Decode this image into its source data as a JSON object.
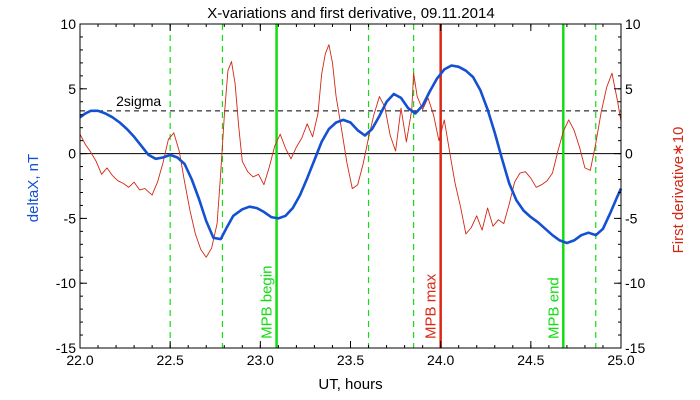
{
  "chart_data": {
    "type": "line",
    "title": "X-variations and first derivative, 09.11.2014",
    "xlabel": "UT, hours",
    "ylabel_left": "deltaX, nT",
    "ylabel_right": "First derivative∗10",
    "xlim": [
      22.0,
      25.0
    ],
    "ylim": [
      -15,
      10
    ],
    "x_ticks": [
      22.0,
      22.5,
      23.0,
      23.5,
      24.0,
      24.5,
      25.0
    ],
    "x_tick_labels": [
      "22.0",
      "22.5",
      "23.0",
      "23.5",
      "24.0",
      "24.5",
      "25.0"
    ],
    "y_ticks": [
      -15,
      -10,
      -5,
      0,
      5,
      10
    ],
    "y_tick_labels": [
      "-15",
      "-10",
      "-5",
      "0",
      "5",
      "10"
    ],
    "colors": {
      "deltaX": "#1450d2",
      "derivative": "#d22814",
      "mpb": "#14dc14",
      "max": "#dc2814",
      "axis": "#000000"
    },
    "sigma_level": 3.3,
    "sigma_label": "2sigma",
    "zero_line": 0,
    "dashed_vlines": [
      22.5,
      22.79,
      23.6,
      23.85,
      24.86
    ],
    "markers": [
      {
        "x": 23.09,
        "label": "MPB begin",
        "color": "#14dc14"
      },
      {
        "x": 24.0,
        "label": "MPB max",
        "color": "#dc2814"
      },
      {
        "x": 24.68,
        "label": "MPB end",
        "color": "#14dc14"
      }
    ],
    "series": [
      {
        "name": "deltaX, nT",
        "color": "#1450d2",
        "x": [
          22.0,
          22.03,
          22.06,
          22.1,
          22.14,
          22.18,
          22.22,
          22.26,
          22.3,
          22.34,
          22.38,
          22.42,
          22.46,
          22.5,
          22.54,
          22.58,
          22.62,
          22.66,
          22.7,
          22.74,
          22.78,
          22.81,
          22.85,
          22.9,
          22.94,
          22.98,
          23.02,
          23.06,
          23.1,
          23.14,
          23.18,
          23.22,
          23.26,
          23.3,
          23.34,
          23.38,
          23.42,
          23.46,
          23.5,
          23.54,
          23.58,
          23.62,
          23.66,
          23.7,
          23.74,
          23.78,
          23.82,
          23.86,
          23.9,
          23.94,
          23.98,
          24.02,
          24.06,
          24.1,
          24.14,
          24.18,
          24.22,
          24.26,
          24.3,
          24.34,
          24.38,
          24.42,
          24.46,
          24.5,
          24.54,
          24.58,
          24.62,
          24.66,
          24.7,
          24.74,
          24.78,
          24.82,
          24.86,
          24.9,
          24.94,
          24.98,
          25.0
        ],
        "y": [
          2.8,
          3.1,
          3.3,
          3.3,
          3.1,
          2.8,
          2.4,
          1.9,
          1.3,
          0.6,
          -0.1,
          -0.4,
          -0.3,
          -0.1,
          -0.3,
          -0.8,
          -2.0,
          -3.5,
          -5.2,
          -6.5,
          -6.6,
          -5.8,
          -4.8,
          -4.3,
          -4.1,
          -4.2,
          -4.5,
          -4.9,
          -5.0,
          -4.8,
          -4.2,
          -3.2,
          -1.9,
          -0.5,
          0.9,
          1.9,
          2.4,
          2.6,
          2.4,
          1.8,
          1.4,
          1.9,
          2.9,
          4.0,
          4.6,
          4.3,
          3.5,
          3.1,
          3.7,
          4.8,
          5.8,
          6.5,
          6.8,
          6.7,
          6.4,
          5.9,
          4.9,
          3.4,
          1.6,
          -0.4,
          -2.3,
          -3.6,
          -4.4,
          -4.9,
          -5.3,
          -5.8,
          -6.3,
          -6.7,
          -6.9,
          -6.7,
          -6.3,
          -6.1,
          -6.3,
          -5.8,
          -4.6,
          -3.3,
          -2.7
        ]
      },
      {
        "name": "First derivative∗10",
        "color": "#d22814",
        "x": [
          22.0,
          22.03,
          22.06,
          22.09,
          22.12,
          22.15,
          22.18,
          22.21,
          22.24,
          22.27,
          22.3,
          22.33,
          22.36,
          22.4,
          22.43,
          22.46,
          22.49,
          22.52,
          22.55,
          22.58,
          22.61,
          22.64,
          22.67,
          22.7,
          22.73,
          22.76,
          22.78,
          22.8,
          22.82,
          22.84,
          22.86,
          22.88,
          22.9,
          22.93,
          22.96,
          22.99,
          23.02,
          23.05,
          23.08,
          23.11,
          23.14,
          23.17,
          23.2,
          23.23,
          23.26,
          23.29,
          23.32,
          23.34,
          23.36,
          23.38,
          23.4,
          23.42,
          23.45,
          23.48,
          23.51,
          23.54,
          23.57,
          23.6,
          23.63,
          23.66,
          23.69,
          23.72,
          23.75,
          23.78,
          23.81,
          23.84,
          23.85,
          23.87,
          23.9,
          23.93,
          23.96,
          23.99,
          24.02,
          24.05,
          24.08,
          24.11,
          24.14,
          24.17,
          24.2,
          24.23,
          24.26,
          24.29,
          24.32,
          24.35,
          24.38,
          24.41,
          24.44,
          24.47,
          24.5,
          24.53,
          24.56,
          24.59,
          24.62,
          24.65,
          24.68,
          24.71,
          24.74,
          24.77,
          24.8,
          24.83,
          24.86,
          24.89,
          24.92,
          24.95,
          24.98,
          25.0
        ],
        "y": [
          1.5,
          0.7,
          0.1,
          -0.6,
          -1.6,
          -1.1,
          -1.7,
          -2.1,
          -2.3,
          -2.6,
          -2.2,
          -2.8,
          -2.7,
          -3.2,
          -2.2,
          -0.7,
          1.1,
          1.6,
          0.2,
          -2.2,
          -4.4,
          -6.2,
          -7.4,
          -8.0,
          -7.3,
          -5.4,
          -1.5,
          2.9,
          6.4,
          7.1,
          5.4,
          2.1,
          -0.6,
          -1.4,
          -1.8,
          -1.6,
          -2.4,
          -1.0,
          0.6,
          1.5,
          0.4,
          -0.4,
          0.5,
          1.2,
          2.3,
          1.3,
          3.1,
          6.1,
          7.7,
          8.4,
          7.0,
          4.4,
          1.9,
          -0.7,
          -2.7,
          -2.4,
          -0.8,
          1.2,
          3.0,
          4.4,
          3.6,
          1.4,
          0.2,
          3.5,
          0.9,
          3.4,
          6.2,
          4.4,
          3.4,
          4.3,
          3.0,
          1.0,
          2.6,
          0.1,
          -2.3,
          -4.1,
          -6.2,
          -5.7,
          -4.8,
          -5.9,
          -4.2,
          -5.6,
          -5.1,
          -5.4,
          -3.9,
          -2.2,
          -1.5,
          -1.4,
          -1.9,
          -2.6,
          -2.4,
          -2.1,
          -1.5,
          0.2,
          1.7,
          2.6,
          1.8,
          0.5,
          -1.1,
          -1.3,
          0.8,
          3.2,
          5.1,
          6.2,
          4.1,
          2.5
        ]
      }
    ]
  }
}
